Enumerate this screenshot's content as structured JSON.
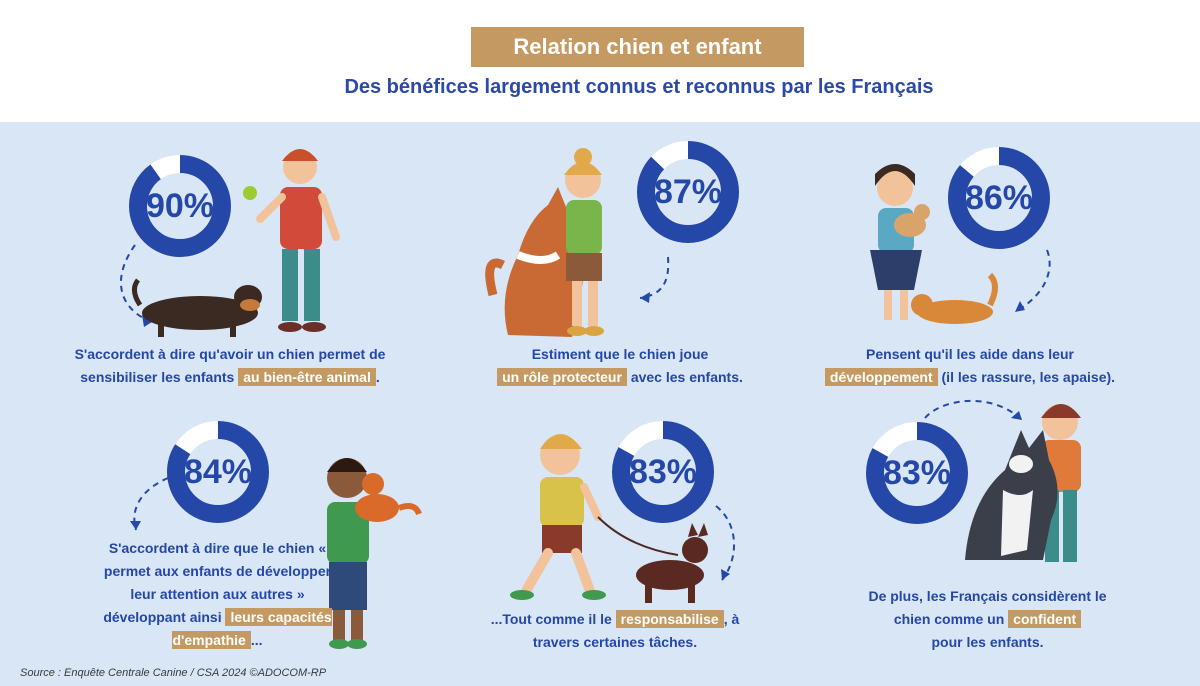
{
  "header": {
    "title": "Relation chien et enfant",
    "subtitle": "Des bénéfices largement connus et reconnus par les Français"
  },
  "colors": {
    "accent_blue": "#2447a8",
    "gold": "#c49a62",
    "panel_bg": "#d8e6f6"
  },
  "stats": [
    {
      "id": "s1",
      "percent": 90,
      "label": "90%",
      "text_before": "S'accordent à dire qu'avoir un chien permet de sensibiliser les enfants",
      "highlight": "au bien-être animal",
      "text_after": "."
    },
    {
      "id": "s2",
      "percent": 87,
      "label": "87%",
      "text_before": "Estiment que le chien joue",
      "highlight": "un rôle protecteur",
      "text_after": "avec les enfants."
    },
    {
      "id": "s3",
      "percent": 86,
      "label": "86%",
      "text_before": "Pensent qu'il les aide dans leur",
      "highlight": "développement",
      "text_after": "(il les rassure, les apaise)."
    },
    {
      "id": "s4",
      "percent": 84,
      "label": "84%",
      "text_before": "S'accordent à dire que le chien « permet aux enfants de développer leur attention aux autres » développant ainsi",
      "highlight": "leurs capacités d'empathie",
      "text_after": "..."
    },
    {
      "id": "s5",
      "percent": 83,
      "label": "83%",
      "text_before": "...Tout comme il le",
      "highlight": "responsabilise",
      "text_after": ", à travers certaines tâches."
    },
    {
      "id": "s6",
      "percent": 83,
      "label": "83%",
      "text_before": "De plus, les Français considèrent le chien comme un",
      "highlight": "confident",
      "text_after": "pour les enfants."
    }
  ],
  "source": "Source : Enquête Centrale Canine / CSA 2024 ©ADOCOM-RP"
}
